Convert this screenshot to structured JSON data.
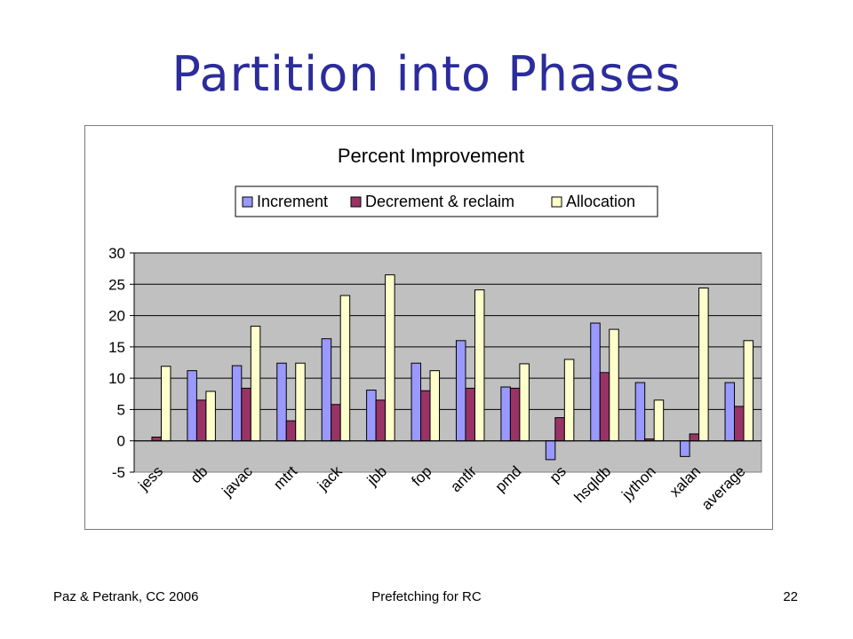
{
  "slide": {
    "title": "Partition into Phases"
  },
  "footer": {
    "left": "Paz & Petrank, CC 2006",
    "center": "Prefetching for RC",
    "page": "22"
  },
  "chart_data": {
    "type": "bar",
    "title": "Percent Improvement",
    "legend_position": "top",
    "grid": true,
    "ylim": [
      -5,
      30
    ],
    "yticks": [
      -5,
      0,
      5,
      10,
      15,
      20,
      25,
      30
    ],
    "categories": [
      "jess",
      "db",
      "javac",
      "mtrt",
      "jack",
      "jbb",
      "fop",
      "antlr",
      "pmd",
      "ps",
      "hsqldb",
      "jython",
      "xalan",
      "average"
    ],
    "series": [
      {
        "name": "Increment",
        "color": "#9999ff",
        "values": [
          0,
          11.2,
          12,
          12.4,
          16.3,
          8.1,
          12.4,
          16,
          8.6,
          -3,
          18.8,
          9.3,
          -2.5,
          9.3
        ]
      },
      {
        "name": "Decrement & reclaim",
        "color": "#993366",
        "values": [
          0.6,
          6.5,
          8.4,
          3.2,
          5.8,
          6.5,
          8,
          8.4,
          8.4,
          3.7,
          10.9,
          0.3,
          1.1,
          5.5
        ]
      },
      {
        "name": "Allocation",
        "color": "#ffffcc",
        "values": [
          11.9,
          7.9,
          18.3,
          12.4,
          23.2,
          26.5,
          11.2,
          24.1,
          12.3,
          13,
          17.8,
          6.5,
          24.4,
          16
        ]
      }
    ]
  }
}
